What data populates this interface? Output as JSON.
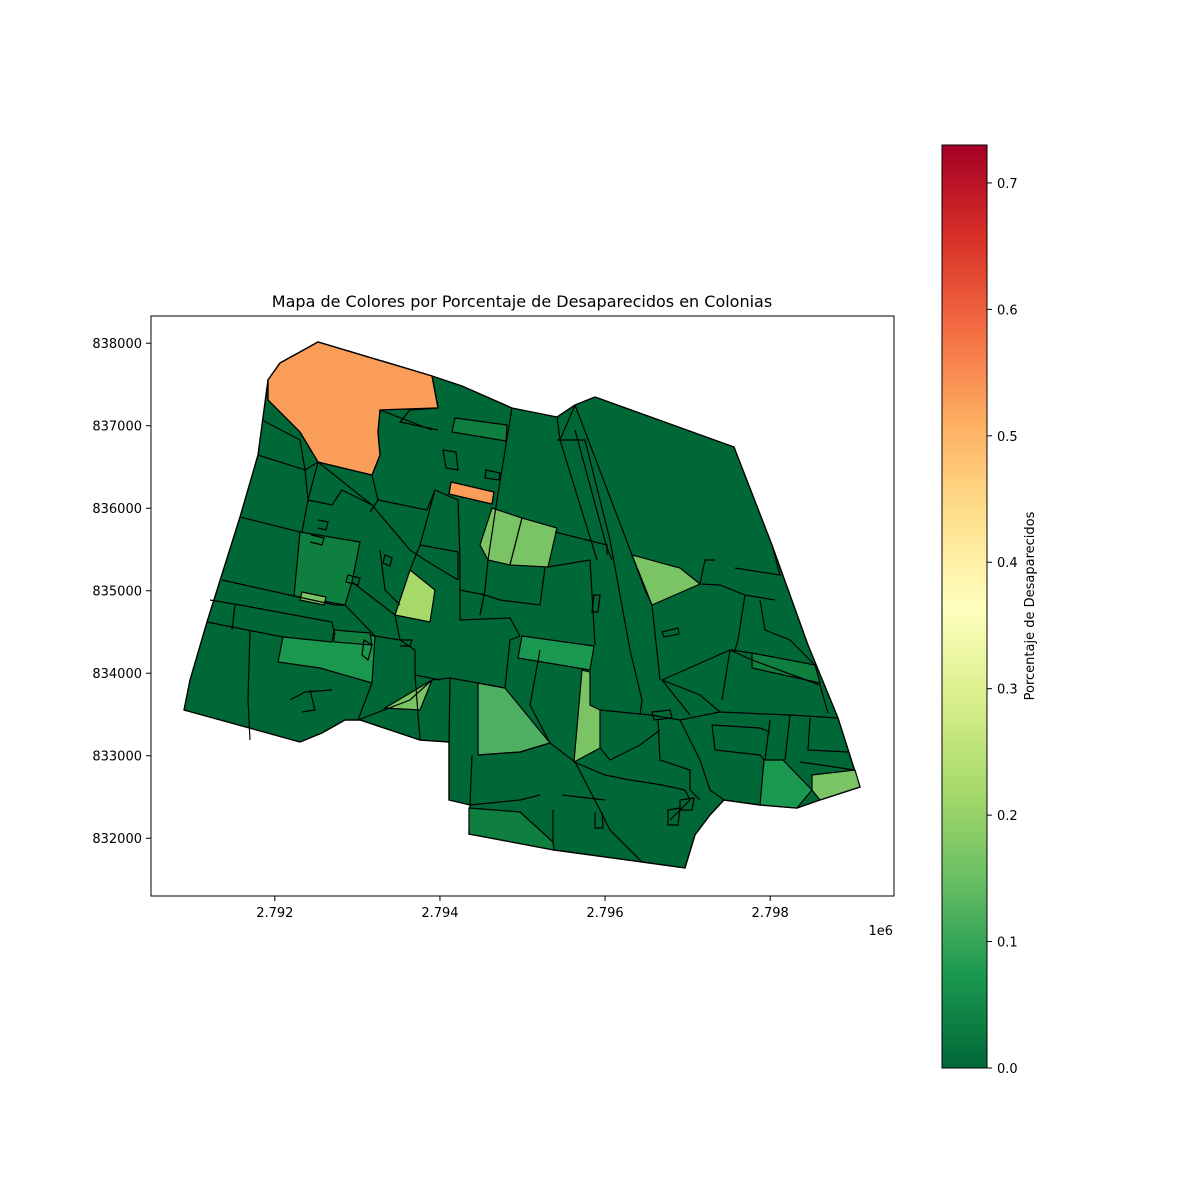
{
  "chart_data": {
    "type": "choropleth",
    "title": "Mapa de Colores por Porcentaje de Desaparecidos en Colonias",
    "x_ticks": [
      "2.792",
      "2.794",
      "2.796",
      "2.798"
    ],
    "x_offset_label": "1e6",
    "y_ticks": [
      "832000",
      "833000",
      "834000",
      "835000",
      "836000",
      "837000",
      "838000"
    ],
    "xlim": [
      2790500,
      2799500
    ],
    "ylim": [
      831300,
      838330
    ],
    "colorbar": {
      "label": "Porcentaje de Desaparecidos",
      "ticks": [
        "0.0",
        "0.1",
        "0.2",
        "0.3",
        "0.4",
        "0.5",
        "0.6",
        "0.7"
      ],
      "range": [
        0,
        0.73
      ],
      "colormap": "RdYlGn_r"
    },
    "category_colors": {
      "zero": "#006837",
      "low": "#0f7f3f",
      "mid_low": "#1a9850",
      "mid": "#4daf62",
      "mid_high": "#7ac465",
      "light": "#a6d96a",
      "high": "#f99d59"
    },
    "regions": [
      {
        "value": 0.0
      },
      {
        "value": 0.52
      },
      {
        "value": 0.52
      },
      {
        "value": 0.05
      },
      {
        "value": 0.15
      },
      {
        "value": 0.16
      },
      {
        "value": 0.17
      },
      {
        "value": 0.06
      },
      {
        "value": 0.21
      },
      {
        "value": 0.17
      },
      {
        "value": 0.12
      },
      {
        "value": 0.18
      },
      {
        "value": 0.1
      },
      {
        "value": 0.08
      },
      {
        "value": 0.17
      },
      {
        "value": 0.07
      },
      {
        "value": 0.04
      },
      {
        "value": 0.14
      }
    ]
  }
}
